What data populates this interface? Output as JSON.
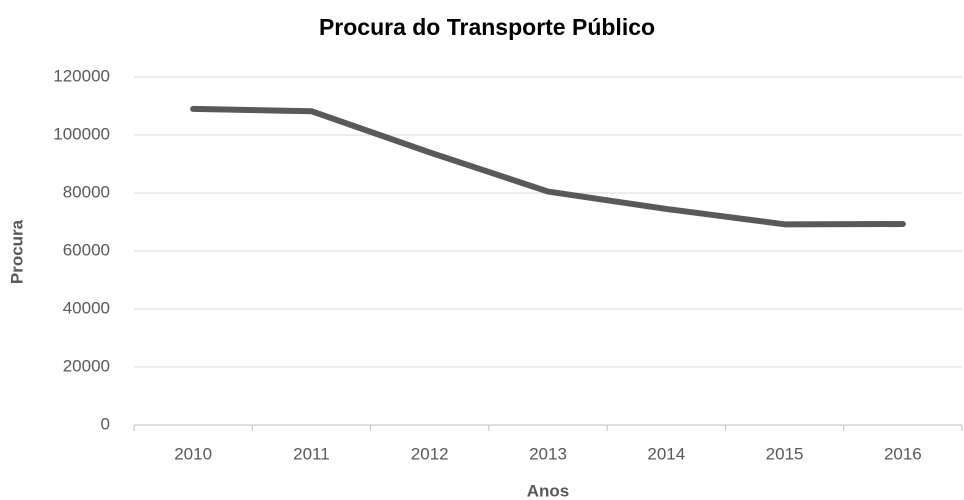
{
  "chart_data": {
    "type": "line",
    "title": "Procura do Transporte Público",
    "x_label": "Anos",
    "y_label": "Procura",
    "categories": [
      "2010",
      "2011",
      "2012",
      "2013",
      "2014",
      "2015",
      "2016"
    ],
    "series": [
      {
        "name": "Procura",
        "color": "#595959",
        "values": [
          109000,
          108200,
          94000,
          80500,
          74500,
          69200,
          69300
        ]
      }
    ],
    "ylim": [
      0,
      120000
    ],
    "yticks": [
      0,
      20000,
      40000,
      60000,
      80000,
      100000,
      120000
    ],
    "grid": true
  }
}
